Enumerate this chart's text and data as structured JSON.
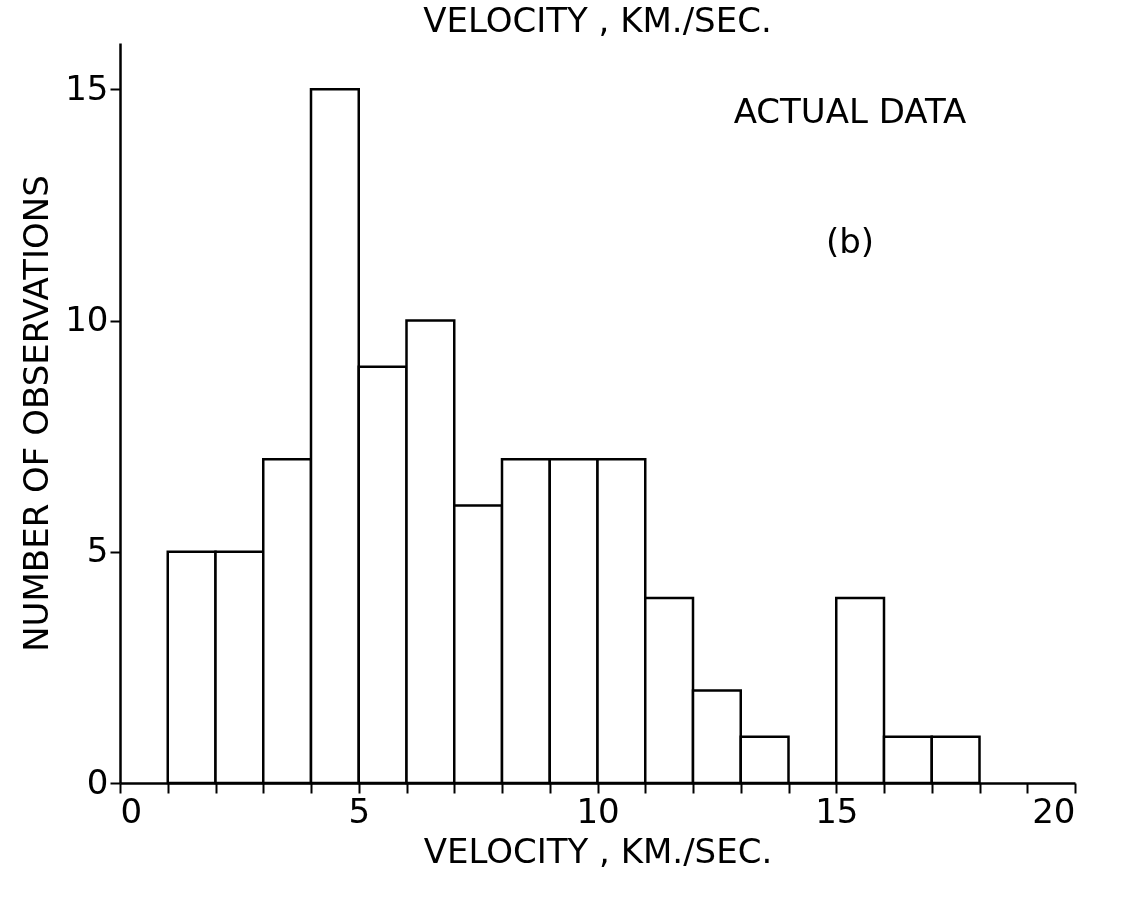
{
  "chart_data": {
    "type": "histogram",
    "title": "VELOCITY , KM./SEC.",
    "xlabel": "VELOCITY , KM./SEC.",
    "ylabel": "NUMBER OF OBSERVATIONS",
    "annotations": [
      "ACTUAL DATA",
      "(b)"
    ],
    "bins": [
      1,
      2,
      3,
      4,
      5,
      6,
      7,
      8,
      9,
      10,
      11,
      12,
      13,
      14,
      15,
      16,
      17,
      18
    ],
    "values": [
      5,
      5,
      7,
      15,
      9,
      10,
      6,
      7,
      7,
      7,
      4,
      2,
      1,
      0,
      4,
      1,
      1
    ],
    "color": "#ffffff",
    "xlim": [
      0,
      20
    ],
    "xticks": [
      0,
      {
        "value": 1,
        "label": null
      },
      {
        "value": 2,
        "label": null
      },
      {
        "value": 3,
        "label": null
      },
      {
        "value": 4,
        "label": null
      },
      5,
      {
        "value": 6,
        "label": null
      },
      {
        "value": 7,
        "label": null
      },
      {
        "value": 8,
        "label": null
      },
      {
        "value": 9,
        "label": null
      },
      10,
      {
        "value": 11,
        "label": null
      },
      {
        "value": 12,
        "label": null
      },
      {
        "value": 13,
        "label": null
      },
      {
        "value": 14,
        "label": null
      },
      15,
      {
        "value": 16,
        "label": null
      },
      {
        "value": 17,
        "label": null
      },
      {
        "value": 18,
        "label": null
      },
      {
        "value": 19,
        "label": null
      },
      20
    ],
    "ylim": [
      0,
      16
    ],
    "yticks": [
      0,
      5,
      10,
      15
    ],
    "grid": false
  }
}
